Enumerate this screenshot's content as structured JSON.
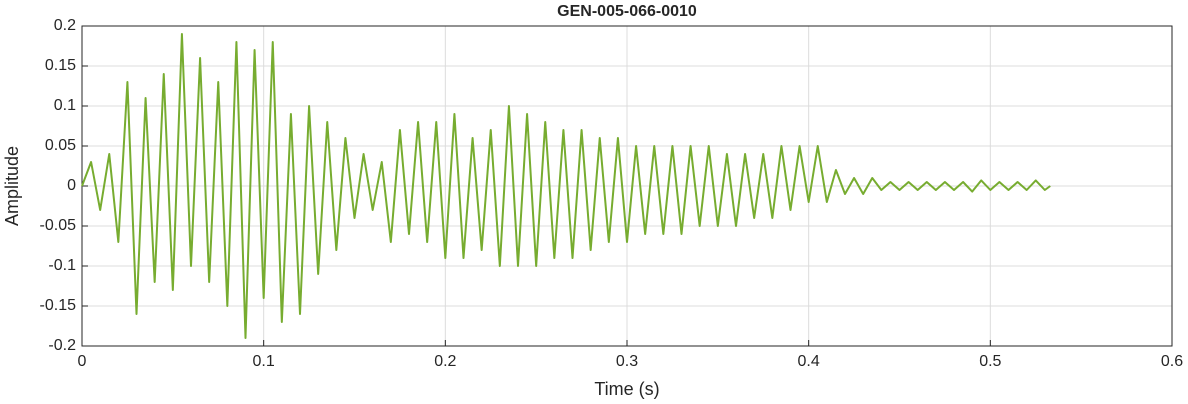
{
  "chart_data": {
    "type": "line",
    "title": "GEN-005-066-0010",
    "x_label": "Time (s)",
    "y_label": "Amplitude",
    "color": "#77ac30",
    "grid": true,
    "xlim": [
      0,
      0.6
    ],
    "xticks": [
      0,
      0.1,
      0.2,
      0.3,
      0.4,
      0.5,
      0.6
    ],
    "ylim": [
      -0.2,
      0.2
    ],
    "yticks": [
      -0.2,
      -0.15,
      -0.1,
      -0.05,
      0,
      0.05,
      0.1,
      0.15,
      0.2
    ],
    "x": [
      0,
      0.005,
      0.01,
      0.015,
      0.02,
      0.025,
      0.03,
      0.035,
      0.04,
      0.045,
      0.05,
      0.055,
      0.06,
      0.065,
      0.07,
      0.075,
      0.08,
      0.085,
      0.09,
      0.095,
      0.1,
      0.105,
      0.11,
      0.115,
      0.12,
      0.125,
      0.13,
      0.135,
      0.14,
      0.145,
      0.15,
      0.155,
      0.16,
      0.165,
      0.17,
      0.175,
      0.18,
      0.185,
      0.19,
      0.195,
      0.2,
      0.205,
      0.21,
      0.215,
      0.22,
      0.225,
      0.23,
      0.235,
      0.24,
      0.245,
      0.25,
      0.255,
      0.26,
      0.265,
      0.27,
      0.275,
      0.28,
      0.285,
      0.29,
      0.295,
      0.3,
      0.305,
      0.31,
      0.315,
      0.32,
      0.325,
      0.33,
      0.335,
      0.34,
      0.345,
      0.35,
      0.355,
      0.36,
      0.365,
      0.37,
      0.375,
      0.38,
      0.385,
      0.39,
      0.395,
      0.4,
      0.405,
      0.41,
      0.415,
      0.42,
      0.425,
      0.43,
      0.435,
      0.44,
      0.445,
      0.45,
      0.455,
      0.46,
      0.465,
      0.47,
      0.475,
      0.48,
      0.485,
      0.49,
      0.495,
      0.5,
      0.505,
      0.51,
      0.515,
      0.52,
      0.525,
      0.53,
      0.533
    ],
    "values": [
      0,
      0.03,
      -0.03,
      0.04,
      -0.07,
      0.13,
      -0.16,
      0.11,
      -0.12,
      0.14,
      -0.13,
      0.19,
      -0.1,
      0.16,
      -0.12,
      0.13,
      -0.15,
      0.18,
      -0.19,
      0.17,
      -0.14,
      0.18,
      -0.17,
      0.09,
      -0.16,
      0.1,
      -0.11,
      0.08,
      -0.08,
      0.06,
      -0.04,
      0.04,
      -0.03,
      0.03,
      -0.07,
      0.07,
      -0.06,
      0.08,
      -0.07,
      0.08,
      -0.09,
      0.09,
      -0.09,
      0.06,
      -0.08,
      0.07,
      -0.1,
      0.1,
      -0.1,
      0.09,
      -0.1,
      0.08,
      -0.09,
      0.07,
      -0.09,
      0.07,
      -0.08,
      0.06,
      -0.07,
      0.06,
      -0.07,
      0.05,
      -0.06,
      0.05,
      -0.06,
      0.05,
      -0.06,
      0.05,
      -0.05,
      0.05,
      -0.05,
      0.04,
      -0.05,
      0.04,
      -0.04,
      0.04,
      -0.04,
      0.05,
      -0.03,
      0.05,
      -0.02,
      0.05,
      -0.02,
      0.02,
      -0.01,
      0.01,
      -0.01,
      0.01,
      -0.005,
      0.005,
      -0.005,
      0.005,
      -0.005,
      0.005,
      -0.005,
      0.005,
      -0.005,
      0.005,
      -0.007,
      0.007,
      -0.005,
      0.005,
      -0.005,
      0.005,
      -0.005,
      0.007,
      -0.005,
      0
    ]
  }
}
